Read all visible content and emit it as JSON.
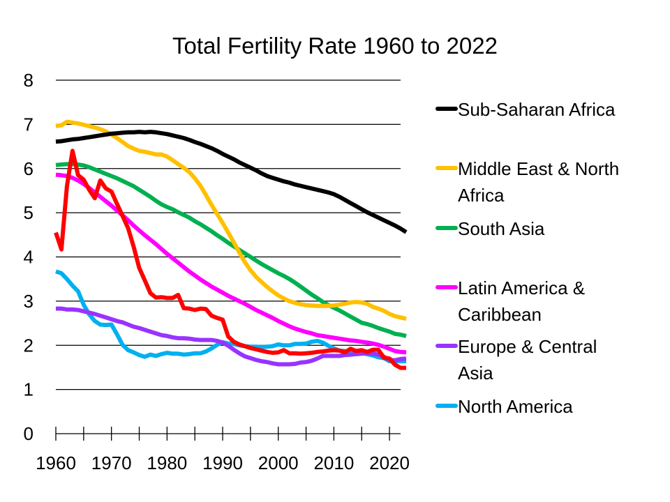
{
  "chart_data": {
    "type": "line",
    "title": "Total Fertility Rate 1960 to 2022",
    "xlabel": "",
    "ylabel": "",
    "xlim": [
      1960,
      2022
    ],
    "ylim": [
      0,
      8
    ],
    "grid": true,
    "legend_position": "right",
    "x_ticks": [
      "1960",
      "1970",
      "1980",
      "1990",
      "2000",
      "2010",
      "2020"
    ],
    "x_tick_values": [
      1960,
      1970,
      1980,
      1990,
      2000,
      2010,
      2020
    ],
    "y_ticks": [
      "0",
      "1",
      "2",
      "3",
      "4",
      "5",
      "6",
      "7",
      "8"
    ],
    "y_tick_values": [
      0,
      1,
      2,
      3,
      4,
      5,
      6,
      7,
      8
    ],
    "x_start": 1960,
    "series": [
      {
        "name": "Sub-Saharan Africa",
        "color": "#000000",
        "in_legend": true,
        "legend_lines": [
          "Sub-Saharan Africa"
        ],
        "values": [
          6.61,
          6.62,
          6.64,
          6.66,
          6.67,
          6.69,
          6.71,
          6.73,
          6.75,
          6.77,
          6.79,
          6.8,
          6.81,
          6.82,
          6.82,
          6.83,
          6.82,
          6.83,
          6.82,
          6.8,
          6.78,
          6.75,
          6.72,
          6.69,
          6.65,
          6.6,
          6.56,
          6.51,
          6.46,
          6.4,
          6.33,
          6.27,
          6.21,
          6.14,
          6.08,
          6.02,
          5.96,
          5.89,
          5.83,
          5.79,
          5.75,
          5.71,
          5.68,
          5.64,
          5.61,
          5.58,
          5.55,
          5.52,
          5.49,
          5.46,
          5.42,
          5.36,
          5.29,
          5.22,
          5.15,
          5.08,
          5.01,
          4.95,
          4.89,
          4.83,
          4.77,
          4.71,
          4.64,
          4.56
        ]
      },
      {
        "name": "Middle East & North Africa",
        "color": "#FFC000",
        "in_legend": true,
        "legend_lines": [
          "Middle East & North",
          "Africa"
        ],
        "values": [
          6.96,
          6.98,
          7.06,
          7.04,
          7.02,
          6.99,
          6.96,
          6.93,
          6.89,
          6.84,
          6.77,
          6.69,
          6.6,
          6.51,
          6.45,
          6.4,
          6.38,
          6.35,
          6.32,
          6.32,
          6.27,
          6.19,
          6.1,
          6.02,
          5.92,
          5.78,
          5.61,
          5.4,
          5.18,
          4.97,
          4.77,
          4.55,
          4.33,
          4.1,
          3.88,
          3.7,
          3.55,
          3.43,
          3.32,
          3.22,
          3.13,
          3.06,
          3.0,
          2.96,
          2.93,
          2.91,
          2.9,
          2.89,
          2.89,
          2.89,
          2.9,
          2.92,
          2.94,
          2.97,
          2.98,
          2.97,
          2.94,
          2.87,
          2.83,
          2.78,
          2.71,
          2.66,
          2.63,
          2.6
        ]
      },
      {
        "name": "South Asia",
        "color": "#00B050",
        "in_legend": true,
        "legend_lines": [
          "South Asia"
        ],
        "values": [
          6.08,
          6.09,
          6.1,
          6.1,
          6.09,
          6.07,
          6.03,
          5.98,
          5.93,
          5.88,
          5.83,
          5.78,
          5.72,
          5.66,
          5.6,
          5.52,
          5.44,
          5.36,
          5.27,
          5.19,
          5.13,
          5.08,
          5.01,
          4.95,
          4.89,
          4.81,
          4.74,
          4.66,
          4.58,
          4.49,
          4.41,
          4.32,
          4.24,
          4.16,
          4.08,
          4.0,
          3.92,
          3.84,
          3.77,
          3.7,
          3.63,
          3.57,
          3.5,
          3.42,
          3.33,
          3.24,
          3.15,
          3.07,
          2.98,
          2.91,
          2.85,
          2.79,
          2.72,
          2.65,
          2.58,
          2.51,
          2.48,
          2.44,
          2.39,
          2.35,
          2.31,
          2.26,
          2.24,
          2.21
        ]
      },
      {
        "name": "Latin America & Caribbean",
        "color": "#FF00FF",
        "in_legend": true,
        "legend_lines": [
          "Latin America &",
          "Caribbean"
        ],
        "values": [
          5.86,
          5.85,
          5.83,
          5.79,
          5.73,
          5.65,
          5.56,
          5.46,
          5.36,
          5.26,
          5.16,
          5.05,
          4.94,
          4.83,
          4.71,
          4.6,
          4.49,
          4.39,
          4.29,
          4.18,
          4.07,
          3.97,
          3.87,
          3.77,
          3.67,
          3.58,
          3.49,
          3.41,
          3.33,
          3.26,
          3.19,
          3.12,
          3.06,
          3.0,
          2.94,
          2.87,
          2.8,
          2.74,
          2.68,
          2.62,
          2.55,
          2.49,
          2.43,
          2.38,
          2.34,
          2.3,
          2.27,
          2.23,
          2.21,
          2.19,
          2.17,
          2.15,
          2.13,
          2.11,
          2.1,
          2.08,
          2.06,
          2.04,
          2.01,
          1.97,
          1.92,
          1.87,
          1.85,
          1.84
        ]
      },
      {
        "name": "Europe & Central Asia",
        "color": "#9933FF",
        "in_legend": true,
        "legend_lines": [
          "Europe & Central",
          "Asia"
        ],
        "values": [
          2.83,
          2.83,
          2.81,
          2.81,
          2.8,
          2.77,
          2.74,
          2.71,
          2.67,
          2.63,
          2.59,
          2.55,
          2.52,
          2.47,
          2.42,
          2.39,
          2.35,
          2.31,
          2.27,
          2.23,
          2.21,
          2.18,
          2.16,
          2.16,
          2.15,
          2.13,
          2.12,
          2.12,
          2.12,
          2.1,
          2.06,
          1.99,
          1.9,
          1.82,
          1.75,
          1.71,
          1.67,
          1.64,
          1.62,
          1.59,
          1.57,
          1.57,
          1.57,
          1.58,
          1.61,
          1.62,
          1.65,
          1.7,
          1.76,
          1.76,
          1.76,
          1.76,
          1.78,
          1.79,
          1.8,
          1.81,
          1.82,
          1.81,
          1.79,
          1.74,
          1.67,
          1.66,
          1.69,
          1.7
        ]
      },
      {
        "name": "North America",
        "color": "#00B0F0",
        "in_legend": true,
        "legend_lines": [
          "North America"
        ],
        "values": [
          3.67,
          3.63,
          3.5,
          3.35,
          3.22,
          2.92,
          2.7,
          2.55,
          2.47,
          2.46,
          2.47,
          2.25,
          2.01,
          1.89,
          1.84,
          1.78,
          1.74,
          1.79,
          1.76,
          1.8,
          1.83,
          1.81,
          1.81,
          1.79,
          1.8,
          1.82,
          1.82,
          1.86,
          1.93,
          2.01,
          2.07,
          2.04,
          2.03,
          2.0,
          1.98,
          1.97,
          1.97,
          1.96,
          1.97,
          1.98,
          2.02,
          2.0,
          2.0,
          2.03,
          2.03,
          2.04,
          2.08,
          2.1,
          2.06,
          1.99,
          1.93,
          1.88,
          1.87,
          1.86,
          1.84,
          1.82,
          1.8,
          1.77,
          1.73,
          1.71,
          1.64,
          1.64,
          1.64,
          1.64
        ]
      },
      {
        "name": "",
        "color": "#FF0000",
        "in_legend": false,
        "legend_lines": [],
        "values": [
          4.55,
          4.17,
          5.6,
          6.4,
          5.85,
          5.75,
          5.52,
          5.33,
          5.73,
          5.55,
          5.48,
          5.2,
          4.93,
          4.65,
          4.23,
          3.75,
          3.47,
          3.18,
          3.08,
          3.09,
          3.07,
          3.07,
          3.14,
          2.84,
          2.83,
          2.8,
          2.83,
          2.82,
          2.67,
          2.62,
          2.58,
          2.2,
          2.08,
          2.02,
          1.98,
          1.94,
          1.91,
          1.88,
          1.85,
          1.83,
          1.84,
          1.89,
          1.82,
          1.82,
          1.81,
          1.82,
          1.83,
          1.85,
          1.86,
          1.88,
          1.89,
          1.88,
          1.84,
          1.92,
          1.87,
          1.89,
          1.85,
          1.9,
          1.9,
          1.72,
          1.7,
          1.56,
          1.49,
          1.49
        ]
      }
    ]
  }
}
